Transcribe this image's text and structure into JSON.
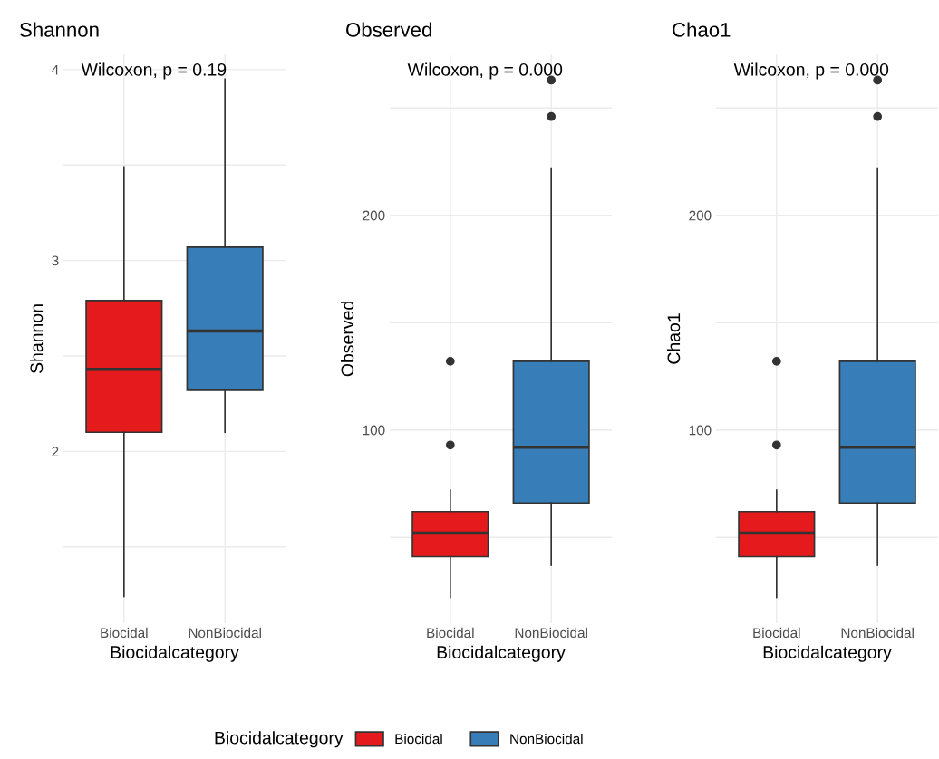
{
  "chart_data": [
    {
      "type": "box",
      "title": "Shannon",
      "xlabel": "Biocidalcategory",
      "ylabel": "Shannon",
      "categories": [
        "Biocidal",
        "NonBiocidal"
      ],
      "series": [
        {
          "name": "Biocidal",
          "color": "#e41a1c",
          "boxes": [
            {
              "low": 1.24,
              "q1": 2.1,
              "median": 2.43,
              "q3": 2.79,
              "high": 3.49
            },
            null
          ]
        },
        {
          "name": "NonBiocidal",
          "color": "#377eb8",
          "boxes": [
            null,
            {
              "low": 2.1,
              "q1": 2.32,
              "median": 2.63,
              "q3": 3.07,
              "high": 3.95
            }
          ]
        }
      ],
      "ylim": [
        1.1,
        4.08
      ],
      "yticks": [
        {
          "value": 1.5,
          "label": null
        },
        2,
        {
          "value": 2.5,
          "label": null
        },
        3,
        {
          "value": 3.5,
          "label": null
        },
        4
      ],
      "grid": true,
      "annotations": [
        "Wilcoxon, p = 0.19"
      ],
      "legend": "bottom",
      "legend_title": "Biocidalcategory"
    },
    {
      "type": "box",
      "title": "Observed",
      "xlabel": "Biocidalcategory",
      "ylabel": "Observed",
      "categories": [
        "Biocidal",
        "NonBiocidal"
      ],
      "series": [
        {
          "color": "#e41a1c",
          "boxes": [
            {
              "low": 22,
              "q1": 41,
              "median": 52,
              "q3": 62,
              "high": 72,
              "outliers": [
                93,
                132
              ]
            },
            null
          ]
        },
        {
          "color": "#377eb8",
          "boxes": [
            null,
            {
              "low": 37,
              "q1": 66,
              "median": 92,
              "q3": 132,
              "high": 222,
              "outliers": [
                246,
                263
              ]
            }
          ]
        }
      ],
      "ylim": [
        10,
        275
      ],
      "yticks": [
        {
          "value": 50,
          "label": null
        },
        100,
        {
          "value": 150,
          "label": null
        },
        200,
        {
          "value": 250,
          "label": null
        }
      ],
      "grid": true,
      "annotations": [
        "Wilcoxon, p = 0.000"
      ]
    },
    {
      "type": "box",
      "title": "Chao1",
      "xlabel": "Biocidalcategory",
      "ylabel": "Chao1",
      "categories": [
        "Biocidal",
        "NonBiocidal"
      ],
      "series": [
        {
          "color": "#e41a1c",
          "boxes": [
            {
              "low": 22,
              "q1": 41,
              "median": 52,
              "q3": 62,
              "high": 72,
              "outliers": [
                93,
                132
              ]
            },
            null
          ]
        },
        {
          "color": "#377eb8",
          "boxes": [
            null,
            {
              "low": 37,
              "q1": 66,
              "median": 92,
              "q3": 132,
              "high": 222,
              "outliers": [
                246,
                263
              ]
            }
          ]
        }
      ],
      "ylim": [
        10,
        275
      ],
      "yticks": [
        {
          "value": 50,
          "label": null
        },
        100,
        {
          "value": 150,
          "label": null
        },
        200,
        {
          "value": 250,
          "label": null
        }
      ],
      "grid": true,
      "annotations": [
        "Wilcoxon, p = 0.000"
      ]
    }
  ]
}
